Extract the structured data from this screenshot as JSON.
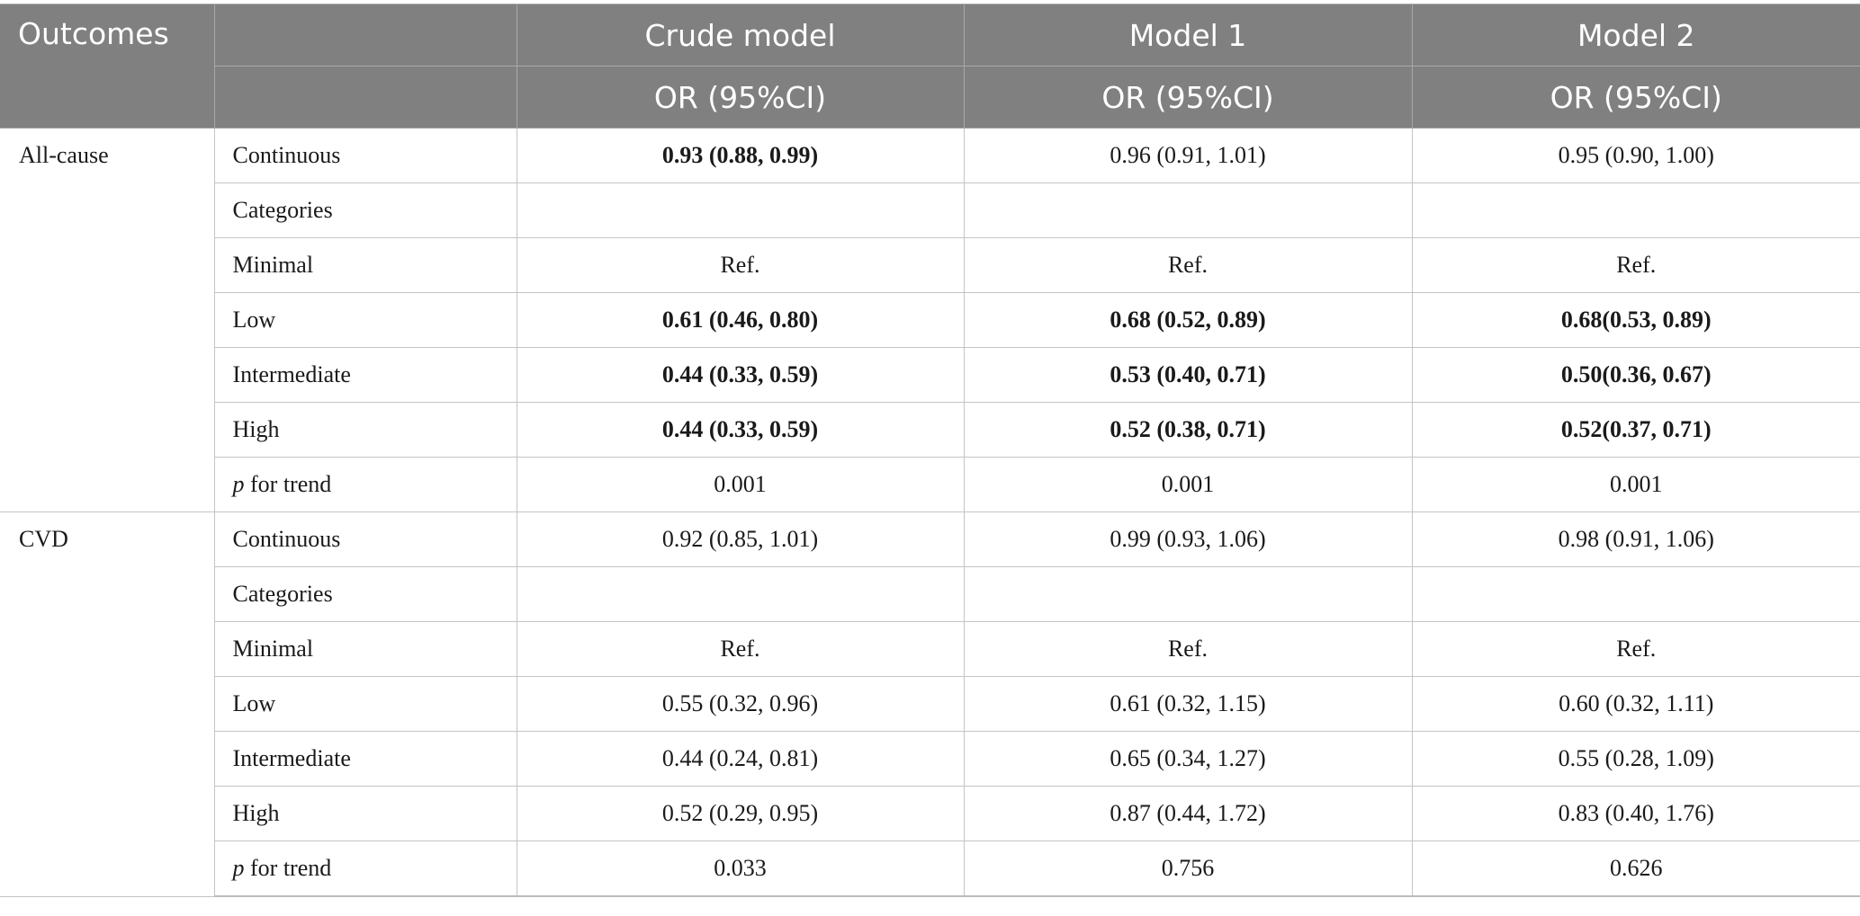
{
  "header": {
    "outcomes_label": "Outcomes",
    "models": [
      "Crude model",
      "Model 1",
      "Model 2"
    ],
    "measure": "OR (95%CI)"
  },
  "groups": [
    {
      "outcome": "All-cause",
      "rows": [
        {
          "label": "Continuous",
          "values": [
            "0.93 (0.88, 0.99)",
            "0.96 (0.91, 1.01)",
            "0.95 (0.90, 1.00)"
          ],
          "bold": [
            true,
            false,
            false
          ]
        },
        {
          "label": "Categories",
          "values": [
            "",
            "",
            ""
          ],
          "bold": [
            false,
            false,
            false
          ]
        },
        {
          "label": "Minimal",
          "values": [
            "Ref.",
            "Ref.",
            "Ref."
          ],
          "bold": [
            false,
            false,
            false
          ]
        },
        {
          "label": "Low",
          "values": [
            "0.61 (0.46, 0.80)",
            "0.68 (0.52, 0.89)",
            "0.68(0.53, 0.89)"
          ],
          "bold": [
            true,
            true,
            true
          ]
        },
        {
          "label": "Intermediate",
          "values": [
            "0.44 (0.33, 0.59)",
            "0.53 (0.40, 0.71)",
            "0.50(0.36, 0.67)"
          ],
          "bold": [
            true,
            true,
            true
          ]
        },
        {
          "label": "High",
          "values": [
            "0.44 (0.33, 0.59)",
            "0.52 (0.38, 0.71)",
            "0.52(0.37, 0.71)"
          ],
          "bold": [
            true,
            true,
            true
          ]
        },
        {
          "label_p": "p",
          "label_rest": " for trend",
          "values": [
            "0.001",
            "0.001",
            "0.001"
          ],
          "bold": [
            false,
            false,
            false
          ]
        }
      ]
    },
    {
      "outcome": "CVD",
      "rows": [
        {
          "label": "Continuous",
          "values": [
            "0.92 (0.85, 1.01)",
            "0.99 (0.93, 1.06)",
            "0.98 (0.91, 1.06)"
          ],
          "bold": [
            false,
            false,
            false
          ]
        },
        {
          "label": "Categories",
          "values": [
            "",
            "",
            ""
          ],
          "bold": [
            false,
            false,
            false
          ]
        },
        {
          "label": "Minimal",
          "values": [
            "Ref.",
            "Ref.",
            "Ref."
          ],
          "bold": [
            false,
            false,
            false
          ]
        },
        {
          "label": "Low",
          "values": [
            "0.55 (0.32, 0.96)",
            "0.61 (0.32, 1.15)",
            "0.60 (0.32, 1.11)"
          ],
          "bold": [
            false,
            false,
            false
          ]
        },
        {
          "label": "Intermediate",
          "values": [
            "0.44 (0.24, 0.81)",
            "0.65 (0.34, 1.27)",
            "0.55 (0.28, 1.09)"
          ],
          "bold": [
            false,
            false,
            false
          ]
        },
        {
          "label": "High",
          "values": [
            "0.52 (0.29, 0.95)",
            "0.87 (0.44, 1.72)",
            "0.83 (0.40, 1.76)"
          ],
          "bold": [
            false,
            false,
            false
          ]
        },
        {
          "label_p": "p",
          "label_rest": " for trend",
          "values": [
            "0.033",
            "0.756",
            "0.626"
          ],
          "bold": [
            false,
            false,
            false
          ]
        }
      ]
    }
  ],
  "colors": {
    "header_bg": "#808080",
    "header_text": "#ffffff",
    "grid": "#c4c4c4"
  }
}
